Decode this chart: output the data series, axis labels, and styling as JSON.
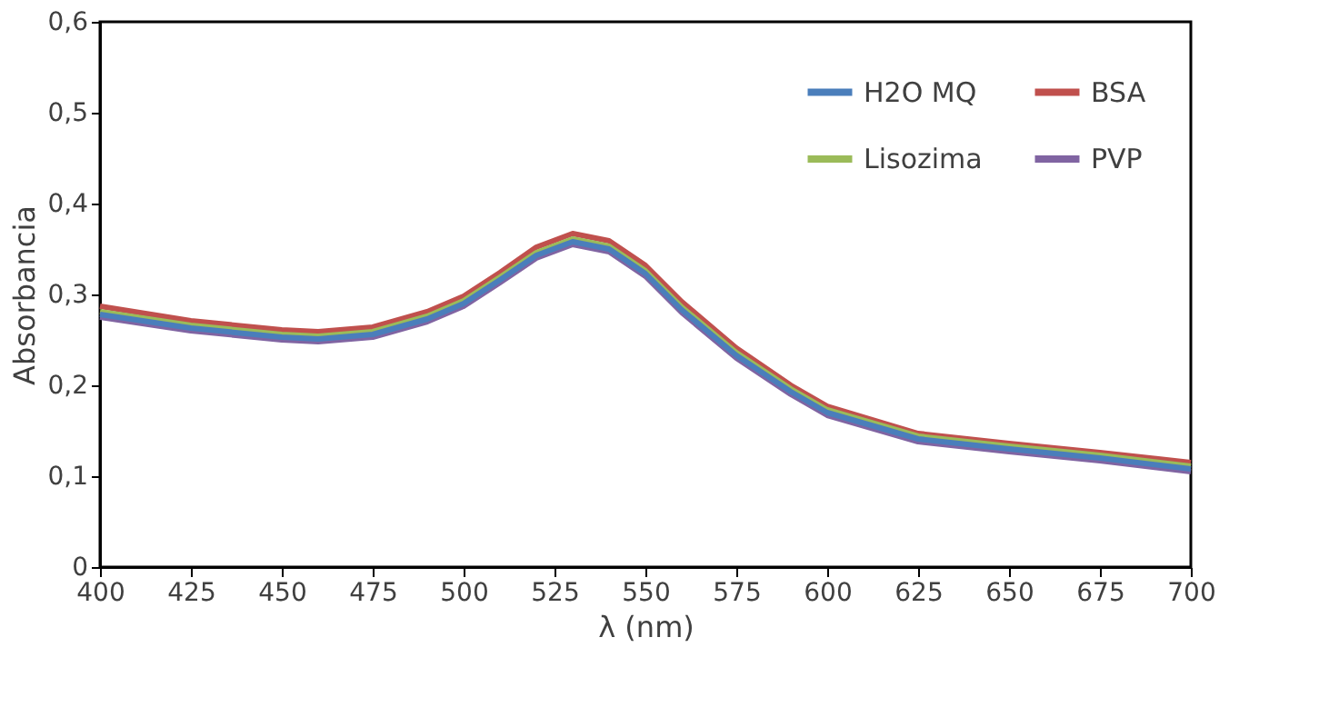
{
  "chart_data": {
    "type": "line",
    "xlabel": "λ (nm)",
    "ylabel": "Absorbancia",
    "x": [
      400,
      425,
      450,
      460,
      475,
      490,
      500,
      510,
      520,
      530,
      540,
      550,
      560,
      575,
      590,
      600,
      625,
      650,
      675,
      700
    ],
    "xlim": [
      400,
      700
    ],
    "xticks": [
      400,
      425,
      450,
      475,
      500,
      525,
      550,
      575,
      600,
      625,
      650,
      675,
      700
    ],
    "ylim": [
      0,
      0.6
    ],
    "yticks": [
      {
        "value": 0,
        "label": "0"
      },
      {
        "value": 0.1,
        "label": "0,1"
      },
      {
        "value": 0.2,
        "label": "0,2"
      },
      {
        "value": 0.3,
        "label": "0,3"
      },
      {
        "value": 0.4,
        "label": "0,4"
      },
      {
        "value": 0.5,
        "label": "0,5"
      },
      {
        "value": 0.6,
        "label": "0,6"
      }
    ],
    "grid": false,
    "legend": "top right",
    "marker": "none",
    "line_style": "solid",
    "series": [
      {
        "name": "H2O MQ",
        "color": "#4a7ebb",
        "values": [
          0.278,
          0.263,
          0.253,
          0.251,
          0.256,
          0.273,
          0.29,
          0.316,
          0.343,
          0.358,
          0.35,
          0.323,
          0.283,
          0.233,
          0.193,
          0.17,
          0.141,
          0.13,
          0.12,
          0.108
        ]
      },
      {
        "name": "BSA",
        "color": "#c0504d",
        "values": [
          0.287,
          0.271,
          0.261,
          0.259,
          0.264,
          0.281,
          0.298,
          0.324,
          0.352,
          0.367,
          0.359,
          0.332,
          0.292,
          0.241,
          0.2,
          0.177,
          0.147,
          0.136,
          0.126,
          0.115
        ]
      },
      {
        "name": "Lisozima",
        "color": "#9bbb59",
        "values": [
          0.281,
          0.266,
          0.256,
          0.254,
          0.259,
          0.276,
          0.293,
          0.319,
          0.346,
          0.361,
          0.353,
          0.326,
          0.286,
          0.236,
          0.196,
          0.173,
          0.144,
          0.133,
          0.123,
          0.111
        ]
      },
      {
        "name": "PVP",
        "color": "#8064a2",
        "values": [
          0.275,
          0.26,
          0.25,
          0.248,
          0.253,
          0.27,
          0.287,
          0.313,
          0.34,
          0.355,
          0.347,
          0.32,
          0.28,
          0.23,
          0.19,
          0.167,
          0.138,
          0.127,
          0.117,
          0.105
        ]
      }
    ]
  }
}
